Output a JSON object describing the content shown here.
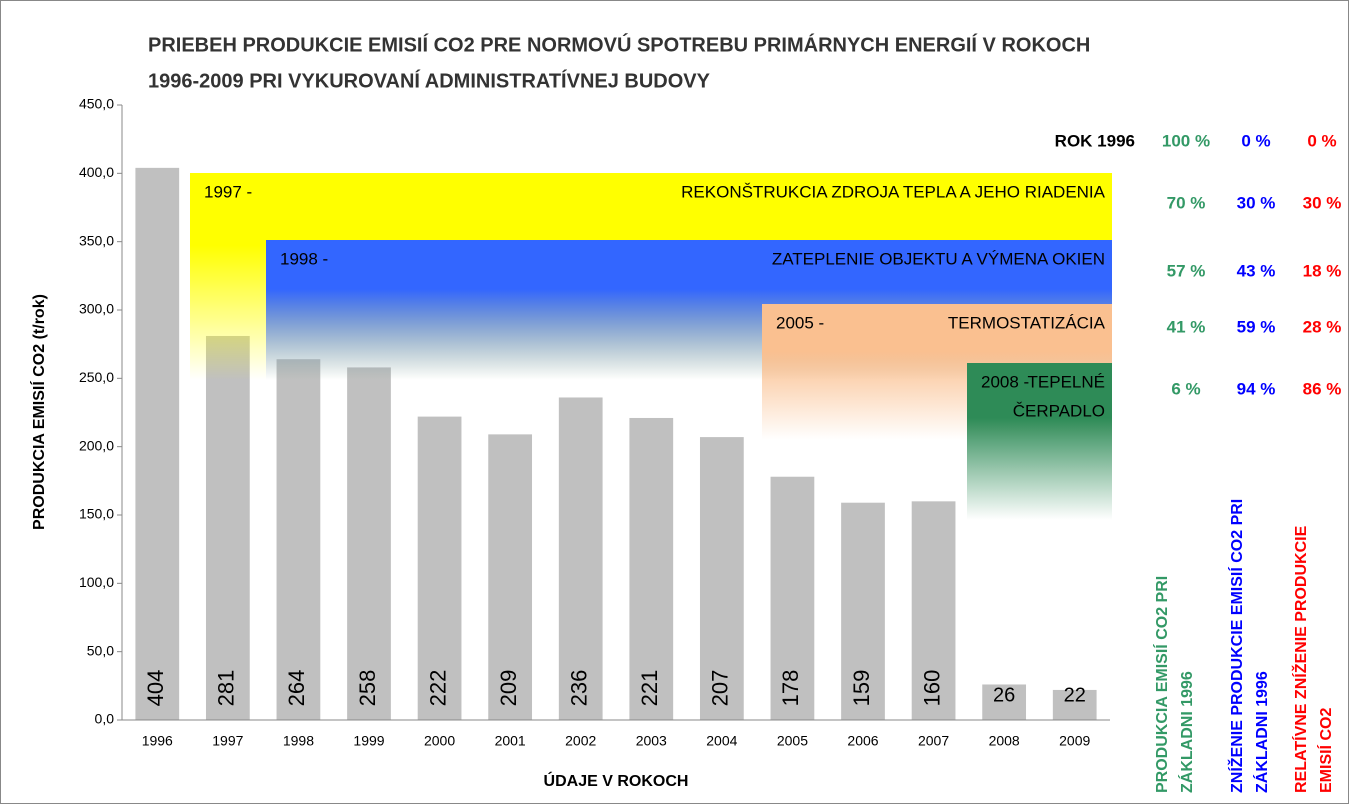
{
  "chart_data": {
    "type": "bar",
    "title": [
      "PRIEBEH PRODUKCIE EMISIÍ CO2 PRE NORMOVÚ SPOTREBU PRIMÁRNYCH ENERGIÍ V ROKOCH",
      "1996-2009 PRI VYKUROVANÍ ADMINISTRATÍVNEJ BUDOVY"
    ],
    "x_label": "ÚDAJE V ROKOCH",
    "y_label": "PRODUKCIA EMISIÍ CO2 (t/rok)",
    "categories": [
      "1996",
      "1997",
      "1998",
      "1999",
      "2000",
      "2001",
      "2002",
      "2003",
      "2004",
      "2005",
      "2006",
      "2007",
      "2008",
      "2009"
    ],
    "values": [
      404,
      281,
      264,
      258,
      222,
      209,
      236,
      221,
      207,
      178,
      159,
      160,
      26,
      22
    ],
    "color": "#c0c0c0",
    "ylim": [
      0,
      450
    ],
    "yticks": [
      {
        "value": 0,
        "label": "0,0"
      },
      {
        "value": 50,
        "label": "50,0"
      },
      {
        "value": 100,
        "label": "100,0"
      },
      {
        "value": 150,
        "label": "150,0"
      },
      {
        "value": 200,
        "label": "200,0"
      },
      {
        "value": 250,
        "label": "250,0"
      },
      {
        "value": 300,
        "label": "300,0"
      },
      {
        "value": 350,
        "label": "350,0"
      },
      {
        "value": 400,
        "label": "400,0"
      },
      {
        "value": 450,
        "label": "450,0"
      }
    ],
    "annotations": [
      {
        "start": "1997 -",
        "text": [
          "REKONŠTRUKCIA ZDROJA TEPLA A JEHO RIADENIA"
        ],
        "color": "#ffff00"
      },
      {
        "start": "1998 -",
        "text": [
          "ZATEPLENIE OBJEKTU A VÝMENA OKIEN"
        ],
        "color": "#3366ff"
      },
      {
        "start": "2005 -",
        "text": [
          "TERMOSTATIZÁCIA"
        ],
        "color": "#fac090"
      },
      {
        "start": "2008 -",
        "text": [
          "TEPELNÉ",
          "ČERPADLO"
        ],
        "color": "#2e8b57"
      }
    ]
  },
  "table": {
    "row_header": "ROK 1996",
    "colors": [
      "#339966",
      "#0000ff",
      "#ff0000"
    ],
    "rows": [
      [
        "100 %",
        "0 %",
        "0 %"
      ],
      [
        "70 %",
        "30 %",
        "30 %"
      ],
      [
        "57 %",
        "43 %",
        "18 %"
      ],
      [
        "41 %",
        "59 %",
        "28 %"
      ],
      [
        "6 %",
        "94 %",
        "86 %"
      ]
    ],
    "columns": [
      [
        "PRODUKCIA EMISIÍ CO2 PRI",
        "ZÁKLADNI 1996"
      ],
      [
        "ZNÍŽENIE PRODUKCIE EMISIÍ CO2 PRI",
        "ZÁKLADNI 1996"
      ],
      [
        "RELATÍVNE ZNÍŽENIE PRODUKCIE",
        "EMISIÍ CO2"
      ]
    ]
  }
}
